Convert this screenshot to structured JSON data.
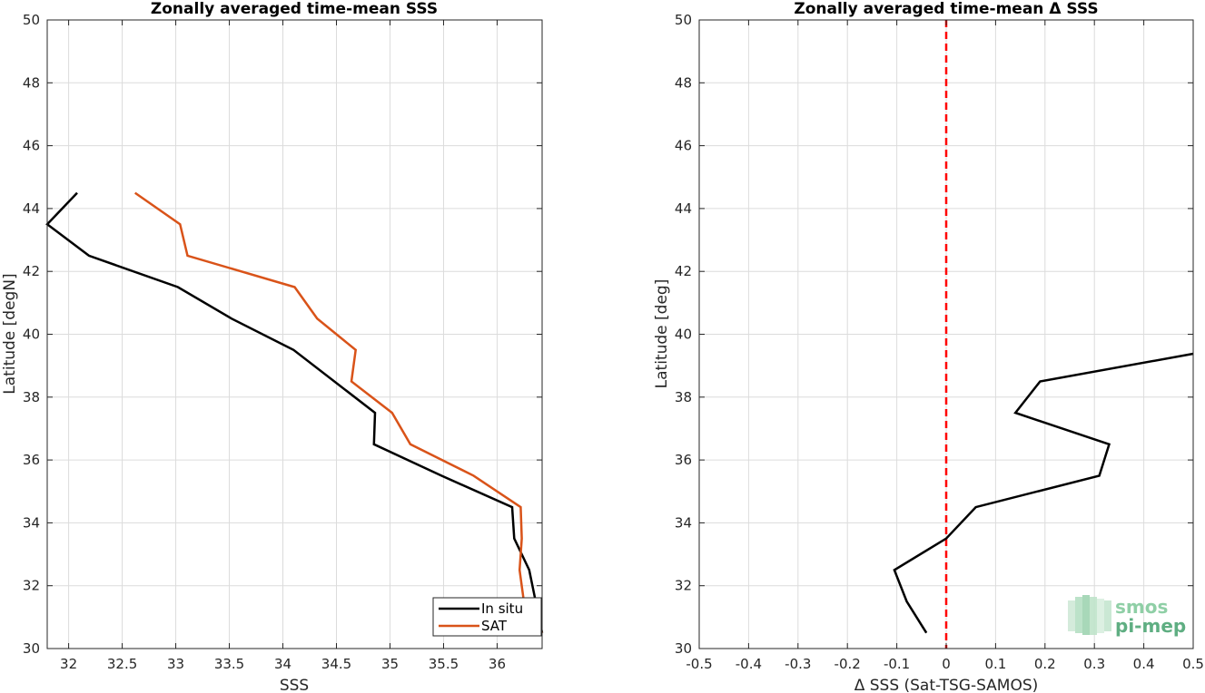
{
  "chart_data": [
    {
      "type": "line",
      "title": "Zonally averaged time-mean SSS",
      "xlabel": "SSS",
      "ylabel": "Latitude [degN]",
      "xlim": [
        31.8,
        36.42
      ],
      "ylim": [
        30,
        50
      ],
      "xticks": [
        32,
        32.5,
        33,
        33.5,
        34,
        34.5,
        35,
        35.5,
        36
      ],
      "xticklabels": [
        "32",
        "32.5",
        "33",
        "33.5",
        "34",
        "34.5",
        "35",
        "35.5",
        "36"
      ],
      "yticks": [
        30,
        32,
        34,
        36,
        38,
        40,
        42,
        44,
        46,
        48,
        50
      ],
      "yticklabels": [
        "30",
        "32",
        "34",
        "36",
        "38",
        "40",
        "42",
        "44",
        "46",
        "48",
        "50"
      ],
      "grid": true,
      "legend": "bottom-right",
      "series": [
        {
          "name": "In situ",
          "color": "#000000",
          "x": [
            32.08,
            31.8,
            32.19,
            33.02,
            33.52,
            34.1,
            34.86,
            34.85,
            35.48,
            36.14,
            36.16,
            36.3,
            36.42
          ],
          "y": [
            44.5,
            43.5,
            42.5,
            41.5,
            40.5,
            39.5,
            37.5,
            36.5,
            35.5,
            34.5,
            33.5,
            32.5,
            30.5
          ]
        },
        {
          "name": "SAT",
          "color": "#d95319",
          "x": [
            32.62,
            33.04,
            33.11,
            34.11,
            34.32,
            34.68,
            34.64,
            35.02,
            35.19,
            35.78,
            36.22,
            36.23,
            36.21,
            36.25,
            36.42
          ],
          "y": [
            44.5,
            43.5,
            42.5,
            41.5,
            40.5,
            39.5,
            38.5,
            37.5,
            36.5,
            35.5,
            34.5,
            33.5,
            32.5,
            31.5,
            30.5
          ]
        }
      ]
    },
    {
      "type": "line",
      "title": "Zonally averaged time-mean Δ SSS",
      "xlabel": "Δ SSS (Sat-TSG-SAMOS)",
      "ylabel": "Latitude [deg]",
      "xlim": [
        -0.5,
        0.5
      ],
      "ylim": [
        30,
        50
      ],
      "xticks": [
        -0.5,
        -0.4,
        -0.3,
        -0.2,
        -0.1,
        0,
        0.1,
        0.2,
        0.3,
        0.4,
        0.5
      ],
      "xticklabels": [
        "-0.5",
        "-0.4",
        "-0.3",
        "-0.2",
        "-0.1",
        "0",
        "0.1",
        "0.2",
        "0.3",
        "0.4",
        "0.5"
      ],
      "yticks": [
        30,
        32,
        34,
        36,
        38,
        40,
        42,
        44,
        46,
        48,
        50
      ],
      "yticklabels": [
        "30",
        "32",
        "34",
        "36",
        "38",
        "40",
        "42",
        "44",
        "46",
        "48",
        "50"
      ],
      "grid": true,
      "reference_line": {
        "x": 0,
        "color": "#ff0000",
        "style": "dashed"
      },
      "series": [
        {
          "color": "#000000",
          "x": [
            -0.04,
            -0.08,
            -0.105,
            0.0,
            0.06,
            0.31,
            0.33,
            0.14,
            0.19,
            0.5
          ],
          "y": [
            30.5,
            31.5,
            32.5,
            33.5,
            34.5,
            35.5,
            36.5,
            37.5,
            38.5,
            39.38
          ]
        }
      ]
    }
  ],
  "logo": {
    "line1": "smos",
    "line2": "pi-mep"
  }
}
